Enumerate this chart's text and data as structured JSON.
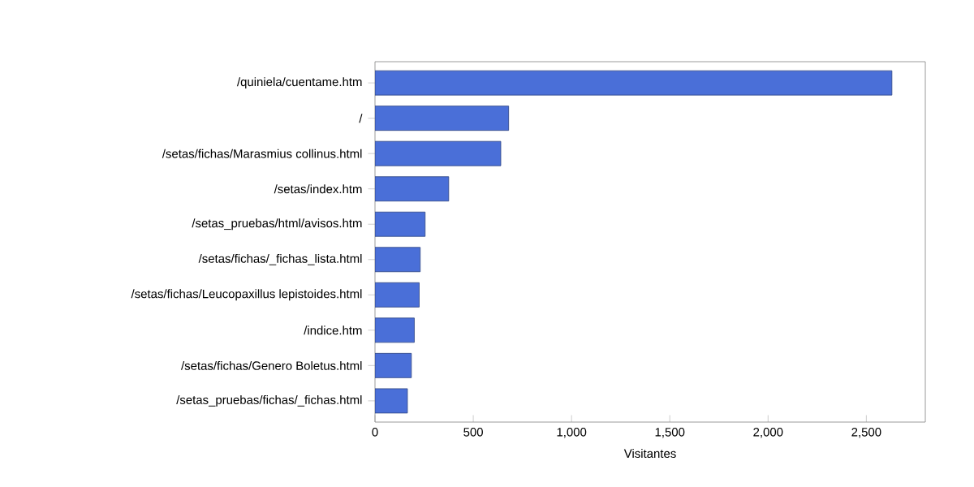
{
  "chart_data": {
    "type": "bar",
    "orientation": "horizontal",
    "xlabel": "Visitantes",
    "categories": [
      "/quiniela/cuentame.htm",
      "/",
      "/setas/fichas/Marasmius collinus.html",
      "/setas/index.htm",
      "/setas_pruebas/html/avisos.htm",
      "/setas/fichas/_fichas_lista.html",
      "/setas/fichas/Leucopaxillus lepistoides.html",
      "/indice.htm",
      "/setas/fichas/Genero Boletus.html",
      "/setas_pruebas/fichas/_fichas.html"
    ],
    "values": [
      2630,
      680,
      640,
      375,
      255,
      230,
      225,
      200,
      185,
      165
    ],
    "color": "#4a6fd8",
    "xlim": [
      0,
      2800
    ],
    "xticks": [
      0,
      500,
      {
        "value": 1000,
        "label": "1,000"
      },
      {
        "value": 1500,
        "label": "1,500"
      },
      {
        "value": 2000,
        "label": "2,000"
      },
      {
        "value": 2500,
        "label": "2,500"
      }
    ]
  }
}
